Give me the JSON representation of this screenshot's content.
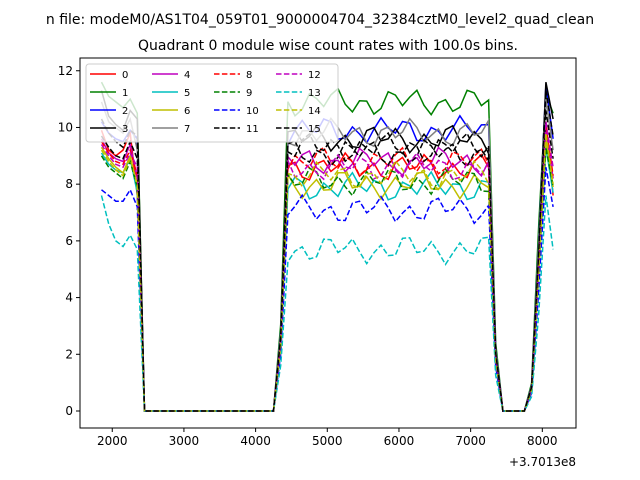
{
  "figure_title": "n file: modeM0/AS1T04_059T01_9000004704_32384cztM0_level2_quad_clean",
  "chart_data": {
    "type": "line",
    "title": "Quadrant 0 module wise count rates with 100.0s bins.",
    "xlabel": "",
    "ylabel": "",
    "x_offset_label": "+3.7013e8",
    "xlim": [
      1550,
      8470
    ],
    "ylim": [
      -0.6,
      12.45
    ],
    "xticks": [
      2000,
      3000,
      4000,
      5000,
      6000,
      7000,
      8000
    ],
    "xtick_labels": [
      "2000",
      "3000",
      "4000",
      "5000",
      "6000",
      "7000",
      "8000"
    ],
    "yticks": [
      0,
      2,
      4,
      6,
      8,
      10,
      12
    ],
    "ytick_labels": [
      "0",
      "2",
      "4",
      "6",
      "8",
      "10",
      "12"
    ],
    "grid": false,
    "legend_position": "upper-left",
    "x": [
      1850,
      1950,
      2050,
      2150,
      2250,
      2350,
      2450,
      2550,
      2650,
      2750,
      2850,
      2950,
      3050,
      3150,
      3250,
      3350,
      3450,
      3550,
      3650,
      3750,
      3850,
      3950,
      4050,
      4150,
      4250,
      4350,
      4450,
      4550,
      4650,
      4750,
      4850,
      4950,
      5050,
      5150,
      5250,
      5350,
      5450,
      5550,
      5650,
      5750,
      5850,
      5950,
      6050,
      6150,
      6250,
      6350,
      6450,
      6550,
      6650,
      6750,
      6850,
      6950,
      7050,
      7150,
      7250,
      7350,
      7450,
      7550,
      7650,
      7750,
      7850,
      7950,
      8050,
      8150
    ],
    "series": [
      {
        "name": "0",
        "color": "#ff0000",
        "dash": "solid",
        "pre": [
          9.9,
          9.2,
          9.0,
          9.2,
          9.8
        ],
        "plateau": 8.6,
        "post": [
          10.2,
          7.6
        ]
      },
      {
        "name": "1",
        "color": "#008000",
        "dash": "solid",
        "pre": [
          11.6,
          11.1,
          10.9,
          10.7,
          11.0
        ],
        "plateau": 10.9,
        "post": [
          11.2,
          10.5
        ]
      },
      {
        "name": "2",
        "color": "#0000ff",
        "dash": "solid",
        "pre": [
          10.2,
          9.8,
          9.6,
          9.5,
          9.9
        ],
        "plateau": 9.9,
        "post": [
          11.5,
          9.6
        ]
      },
      {
        "name": "3",
        "color": "#000000",
        "dash": "solid",
        "pre": [
          11.3,
          10.4,
          10.1,
          9.9,
          10.6
        ],
        "plateau": 9.6,
        "post": [
          11.6,
          10.3
        ]
      },
      {
        "name": "4",
        "color": "#bf00bf",
        "dash": "solid",
        "pre": [
          9.6,
          9.1,
          8.9,
          8.8,
          9.4
        ],
        "plateau": 8.8,
        "post": [
          10.0,
          8.2
        ]
      },
      {
        "name": "5",
        "color": "#00bfbf",
        "dash": "solid",
        "pre": [
          9.1,
          8.7,
          8.5,
          8.4,
          8.9
        ],
        "plateau": 7.9,
        "post": [
          9.3,
          7.7
        ]
      },
      {
        "name": "6",
        "color": "#bfbf00",
        "dash": "solid",
        "pre": [
          9.3,
          8.9,
          8.6,
          8.4,
          9.0
        ],
        "plateau": 8.0,
        "post": [
          9.6,
          7.9
        ]
      },
      {
        "name": "7",
        "color": "#808080",
        "dash": "solid",
        "pre": [
          10.9,
          10.2,
          10.0,
          9.8,
          10.3
        ],
        "plateau": 9.8,
        "post": [
          11.0,
          9.2
        ]
      },
      {
        "name": "8",
        "color": "#ff0000",
        "dash": "dashed",
        "pre": [
          9.5,
          9.1,
          8.8,
          8.7,
          9.2
        ],
        "plateau": 8.8,
        "post": [
          10.1,
          8.3
        ]
      },
      {
        "name": "9",
        "color": "#008000",
        "dash": "dashed",
        "pre": [
          9.0,
          8.6,
          8.4,
          8.2,
          8.8
        ],
        "plateau": 8.1,
        "post": [
          9.3,
          7.9
        ]
      },
      {
        "name": "10",
        "color": "#0000ff",
        "dash": "dashed",
        "pre": [
          7.8,
          7.6,
          7.4,
          7.4,
          7.8
        ],
        "plateau": 7.1,
        "post": [
          8.6,
          7.2
        ]
      },
      {
        "name": "11",
        "color": "#000000",
        "dash": "dashed",
        "pre": [
          9.7,
          9.3,
          9.0,
          8.9,
          9.5
        ],
        "plateau": 9.1,
        "post": [
          10.6,
          8.9
        ]
      },
      {
        "name": "12",
        "color": "#bf00bf",
        "dash": "dashed",
        "pre": [
          9.4,
          9.0,
          8.7,
          8.6,
          9.1
        ],
        "plateau": 8.6,
        "post": [
          10.2,
          8.6
        ]
      },
      {
        "name": "13",
        "color": "#00bfbf",
        "dash": "dashed",
        "pre": [
          7.6,
          6.6,
          6.0,
          5.8,
          6.2
        ],
        "plateau": 5.7,
        "post": [
          7.6,
          5.7
        ]
      },
      {
        "name": "14",
        "color": "#bfbf00",
        "dash": "dashed",
        "pre": [
          9.2,
          8.8,
          8.5,
          8.3,
          8.9
        ],
        "plateau": 8.3,
        "post": [
          9.8,
          8.0
        ]
      },
      {
        "name": "15",
        "color": "#000000",
        "dash": "dashed",
        "pre": [
          10.3,
          9.8,
          9.5,
          9.3,
          9.9
        ],
        "plateau": 9.3,
        "post": [
          11.3,
          9.7
        ]
      }
    ]
  }
}
